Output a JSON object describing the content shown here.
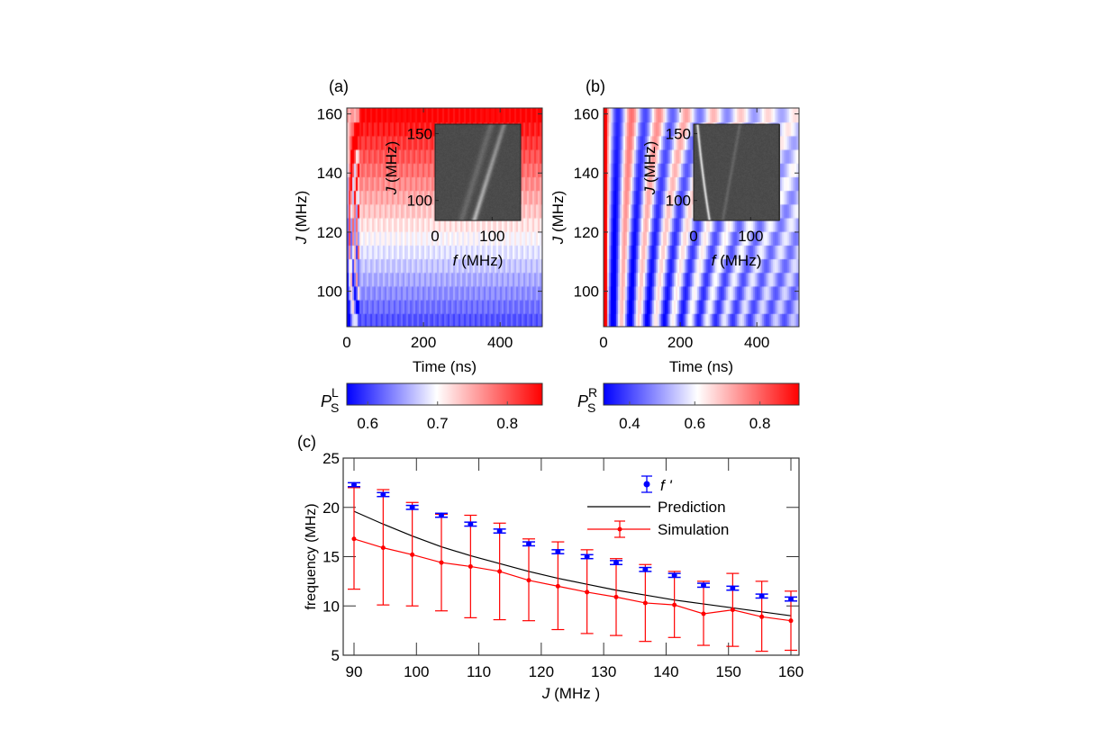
{
  "panel_labels": {
    "a": "(a)",
    "b": "(b)",
    "c": "(c)"
  },
  "chart_data": [
    {
      "type": "heatmap",
      "panel": "a",
      "xlabel": "Time (ns)",
      "ylabel": "J (MHz)",
      "xlim": [
        0,
        510
      ],
      "ylim": [
        88,
        162
      ],
      "xticks": [
        "0",
        "200",
        "400"
      ],
      "yticks": [
        "100",
        "120",
        "140",
        "160"
      ],
      "colorbar": {
        "label": "P",
        "sup": "L",
        "sub": "S",
        "range": [
          0.57,
          0.85
        ],
        "ticks": [
          "0.6",
          "0.7",
          "0.8"
        ],
        "colors": [
          "#0000ff",
          "#ffffff",
          "#ff0000"
        ]
      },
      "inset": {
        "xlabel": "f (MHz)",
        "ylabel": "J (MHz)",
        "xticks": [
          "0",
          "100"
        ],
        "yticks": [
          "100",
          "150"
        ]
      }
    },
    {
      "type": "heatmap",
      "panel": "b",
      "xlabel": "Time (ns)",
      "ylabel": "J (MHz)",
      "xlim": [
        0,
        510
      ],
      "ylim": [
        88,
        162
      ],
      "xticks": [
        "0",
        "200",
        "400"
      ],
      "yticks": [
        "100",
        "120",
        "140",
        "160"
      ],
      "colorbar": {
        "label": "P",
        "sup": "R",
        "sub": "S",
        "range": [
          0.32,
          0.92
        ],
        "ticks": [
          "0.4",
          "0.6",
          "0.8"
        ],
        "colors": [
          "#0000ff",
          "#ffffff",
          "#ff0000"
        ]
      },
      "inset": {
        "xlabel": "f (MHz)",
        "ylabel": "J (MHz)",
        "xticks": [
          "0",
          "100"
        ],
        "yticks": [
          "100",
          "150"
        ]
      }
    },
    {
      "type": "line",
      "panel": "c",
      "xlabel_italic": "J",
      "xlabel": "(MHz )",
      "ylabel": "frequency (MHz)",
      "xlim": [
        88,
        161
      ],
      "ylim": [
        5,
        25
      ],
      "xticks": [
        "90",
        "100",
        "110",
        "120",
        "130",
        "140",
        "150",
        "160"
      ],
      "yticks": [
        "5",
        "10",
        "15",
        "20",
        "25"
      ],
      "legend": {
        "position": "top-right",
        "entries": [
          "f '",
          "Prediction",
          "Simulation"
        ]
      },
      "x": [
        90,
        94.67,
        99.33,
        104,
        108.67,
        113.33,
        118,
        122.67,
        127.33,
        132,
        136.67,
        141.33,
        146,
        150.67,
        155.33,
        160
      ],
      "series": [
        {
          "name": "f '",
          "color": "#0000ff",
          "values": [
            22.3,
            21.3,
            20.0,
            19.2,
            18.3,
            17.6,
            16.3,
            15.5,
            15.0,
            14.4,
            13.7,
            13.1,
            12.1,
            11.8,
            11.0,
            10.7
          ],
          "error": 0.2
        },
        {
          "name": "Prediction",
          "color": "#000000",
          "values": [
            19.6,
            18.3,
            17.1,
            16.0,
            15.1,
            14.3,
            13.5,
            12.8,
            12.2,
            11.6,
            11.1,
            10.6,
            10.2,
            9.8,
            9.4,
            9.0
          ]
        },
        {
          "name": "Simulation",
          "color": "#ff0000",
          "values": [
            16.8,
            15.9,
            15.2,
            14.4,
            14.0,
            13.5,
            12.6,
            12.0,
            11.4,
            10.9,
            10.3,
            10.1,
            9.2,
            9.6,
            8.9,
            8.5
          ],
          "lower": [
            11.7,
            10.1,
            10.0,
            9.5,
            8.8,
            8.6,
            8.5,
            7.6,
            7.2,
            7.0,
            6.4,
            6.8,
            6.0,
            5.9,
            5.4,
            5.5
          ],
          "upper": [
            22.0,
            21.8,
            20.5,
            19.3,
            19.2,
            18.4,
            16.8,
            16.5,
            15.7,
            14.8,
            14.2,
            13.5,
            12.5,
            13.3,
            12.5,
            11.5
          ]
        }
      ]
    }
  ]
}
